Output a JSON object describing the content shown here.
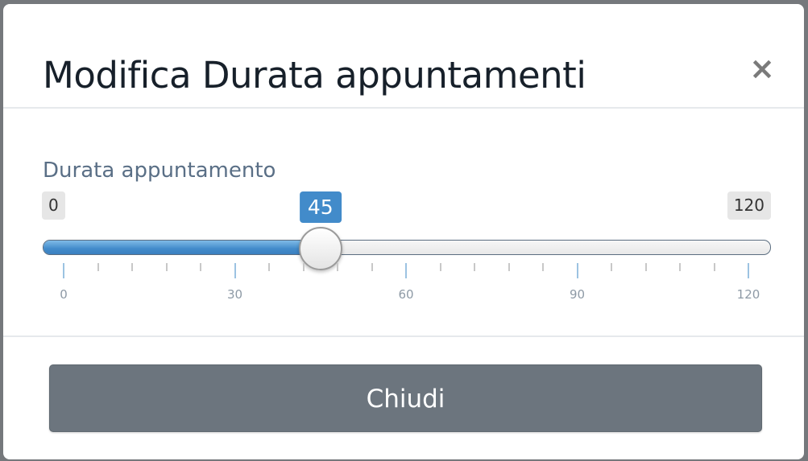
{
  "modal": {
    "title": "Modifica Durata appuntamenti",
    "close_icon": "close-icon",
    "close_label": "×"
  },
  "slider": {
    "label": "Durata appuntamento",
    "min": 0,
    "max": 120,
    "value": 45,
    "min_label": "0",
    "max_label": "120",
    "value_label": "45",
    "step_ticks": 6,
    "tick_labels": [
      "0",
      "30",
      "60",
      "90",
      "120"
    ],
    "accent_color": "#428bca"
  },
  "footer": {
    "close_button": "Chiudi"
  }
}
